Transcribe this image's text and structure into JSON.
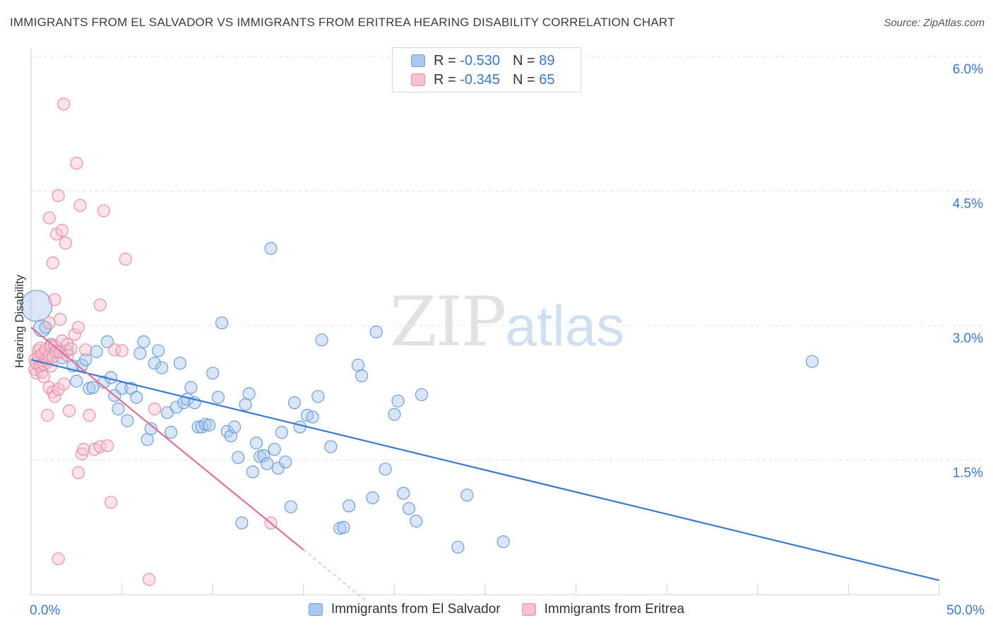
{
  "header": {
    "title": "IMMIGRANTS FROM EL SALVADOR VS IMMIGRANTS FROM ERITREA HEARING DISABILITY CORRELATION CHART",
    "source": "Source: ZipAtlas.com"
  },
  "watermark": {
    "zip": "ZIP",
    "atlas": "atlas"
  },
  "legend": {
    "r_label": "R =",
    "n_label": "N =",
    "rows": [
      {
        "r": "-0.530",
        "n": "89",
        "color": "#a8c8f0",
        "border": "#6f9fd8"
      },
      {
        "r": "-0.345",
        "n": "65",
        "color": "#f7c0d0",
        "border": "#e98fab"
      }
    ]
  },
  "chart_data": {
    "type": "scatter",
    "title": "IMMIGRANTS FROM EL SALVADOR VS IMMIGRANTS FROM ERITREA HEARING DISABILITY CORRELATION CHART",
    "xlabel": "",
    "ylabel": "Hearing Disability",
    "xlim": [
      0,
      50
    ],
    "ylim": [
      0,
      6.0
    ],
    "x_tick_labels": [
      "0.0%",
      "50.0%"
    ],
    "y_ticks": [
      1.5,
      3.0,
      4.5,
      6.0
    ],
    "y_tick_labels": [
      "1.5%",
      "3.0%",
      "4.5%",
      "6.0%"
    ],
    "grid": true,
    "series": [
      {
        "name": "Immigrants from El Salvador",
        "color": "#a8c8f0",
        "stroke": "#6f9fd8",
        "trend_color": "#3b78d0",
        "trend": {
          "x0": 0.0,
          "y0": 2.62,
          "x1": 50.0,
          "y1": 0.16
        },
        "points": [
          [
            0.3,
            3.22
          ],
          [
            0.6,
            2.97
          ],
          [
            0.8,
            2.98
          ],
          [
            1.1,
            2.79
          ],
          [
            1.3,
            2.71
          ],
          [
            1.5,
            2.73
          ],
          [
            1.7,
            2.64
          ],
          [
            2.0,
            2.72
          ],
          [
            2.3,
            2.55
          ],
          [
            2.5,
            2.38
          ],
          [
            2.8,
            2.56
          ],
          [
            3.0,
            2.62
          ],
          [
            3.2,
            2.3
          ],
          [
            3.4,
            2.31
          ],
          [
            3.6,
            2.71
          ],
          [
            4.0,
            2.37
          ],
          [
            4.2,
            2.82
          ],
          [
            4.4,
            2.42
          ],
          [
            4.6,
            2.22
          ],
          [
            4.8,
            2.07
          ],
          [
            5.0,
            2.3
          ],
          [
            5.3,
            1.94
          ],
          [
            5.5,
            2.3
          ],
          [
            5.8,
            2.2
          ],
          [
            6.0,
            2.69
          ],
          [
            6.2,
            2.82
          ],
          [
            6.4,
            1.73
          ],
          [
            6.6,
            1.85
          ],
          [
            6.8,
            2.58
          ],
          [
            7.0,
            2.72
          ],
          [
            7.2,
            2.53
          ],
          [
            7.5,
            2.03
          ],
          [
            7.7,
            1.81
          ],
          [
            8.0,
            2.09
          ],
          [
            8.2,
            2.58
          ],
          [
            8.4,
            2.14
          ],
          [
            8.6,
            2.18
          ],
          [
            8.8,
            2.31
          ],
          [
            9.0,
            2.14
          ],
          [
            9.2,
            1.87
          ],
          [
            9.4,
            1.87
          ],
          [
            9.6,
            1.9
          ],
          [
            9.8,
            1.89
          ],
          [
            10.0,
            2.47
          ],
          [
            10.3,
            2.2
          ],
          [
            10.5,
            3.03
          ],
          [
            10.8,
            1.82
          ],
          [
            11.0,
            1.77
          ],
          [
            11.2,
            1.87
          ],
          [
            11.4,
            1.53
          ],
          [
            11.6,
            0.8
          ],
          [
            11.8,
            2.12
          ],
          [
            12.0,
            2.24
          ],
          [
            12.2,
            1.37
          ],
          [
            12.4,
            1.69
          ],
          [
            12.6,
            1.54
          ],
          [
            12.8,
            1.55
          ],
          [
            13.0,
            1.46
          ],
          [
            13.2,
            3.86
          ],
          [
            13.4,
            1.62
          ],
          [
            13.6,
            1.41
          ],
          [
            13.8,
            1.81
          ],
          [
            14.0,
            1.48
          ],
          [
            14.3,
            0.98
          ],
          [
            14.5,
            2.14
          ],
          [
            14.8,
            1.87
          ],
          [
            15.2,
            2.0
          ],
          [
            15.5,
            1.98
          ],
          [
            15.8,
            2.21
          ],
          [
            16.0,
            2.84
          ],
          [
            16.5,
            1.65
          ],
          [
            17.0,
            0.74
          ],
          [
            17.2,
            0.75
          ],
          [
            17.5,
            0.99
          ],
          [
            18.0,
            2.56
          ],
          [
            18.2,
            2.44
          ],
          [
            18.8,
            1.08
          ],
          [
            19.0,
            2.93
          ],
          [
            19.5,
            1.4
          ],
          [
            20.0,
            2.01
          ],
          [
            20.2,
            2.16
          ],
          [
            20.5,
            1.13
          ],
          [
            20.8,
            0.96
          ],
          [
            21.2,
            0.82
          ],
          [
            21.5,
            2.23
          ],
          [
            23.5,
            0.53
          ],
          [
            24.0,
            1.11
          ],
          [
            26.0,
            0.59
          ],
          [
            43.0,
            2.6
          ]
        ]
      },
      {
        "name": "Immigrants from Eritrea",
        "color": "#f7c0d0",
        "stroke": "#e98fab",
        "trend_color": "#e06f96",
        "trend": {
          "x0": 0.0,
          "y0": 2.98,
          "x1": 15.0,
          "y1": 0.5
        },
        "trend_dash": {
          "x0": 15.0,
          "y0": 0.5,
          "x1": 18.5,
          "y1": -0.08
        },
        "points": [
          [
            0.2,
            2.62
          ],
          [
            0.2,
            2.51
          ],
          [
            0.3,
            2.47
          ],
          [
            0.3,
            2.58
          ],
          [
            0.4,
            2.72
          ],
          [
            0.4,
            2.65
          ],
          [
            0.5,
            2.55
          ],
          [
            0.5,
            2.75
          ],
          [
            0.6,
            2.48
          ],
          [
            0.6,
            2.68
          ],
          [
            0.7,
            2.57
          ],
          [
            0.7,
            2.43
          ],
          [
            0.8,
            2.62
          ],
          [
            0.8,
            2.73
          ],
          [
            0.9,
            2.0
          ],
          [
            0.9,
            2.59
          ],
          [
            1.0,
            2.31
          ],
          [
            1.0,
            2.66
          ],
          [
            1.0,
            3.03
          ],
          [
            1.0,
            4.2
          ],
          [
            1.1,
            2.77
          ],
          [
            1.1,
            2.55
          ],
          [
            1.2,
            3.7
          ],
          [
            1.2,
            2.26
          ],
          [
            1.2,
            2.65
          ],
          [
            1.3,
            2.78
          ],
          [
            1.3,
            2.21
          ],
          [
            1.3,
            3.29
          ],
          [
            1.4,
            4.02
          ],
          [
            1.4,
            2.71
          ],
          [
            1.5,
            4.45
          ],
          [
            1.5,
            0.4
          ],
          [
            1.5,
            2.29
          ],
          [
            1.6,
            3.07
          ],
          [
            1.6,
            2.7
          ],
          [
            1.7,
            2.83
          ],
          [
            1.7,
            4.06
          ],
          [
            1.8,
            5.47
          ],
          [
            1.8,
            2.35
          ],
          [
            1.9,
            3.92
          ],
          [
            2.0,
            2.67
          ],
          [
            2.0,
            2.79
          ],
          [
            2.1,
            2.05
          ],
          [
            2.2,
            2.74
          ],
          [
            2.4,
            2.9
          ],
          [
            2.5,
            4.81
          ],
          [
            2.6,
            2.98
          ],
          [
            2.6,
            1.36
          ],
          [
            2.7,
            4.34
          ],
          [
            2.8,
            1.57
          ],
          [
            2.9,
            1.62
          ],
          [
            3.0,
            2.73
          ],
          [
            3.2,
            2.0
          ],
          [
            3.5,
            1.62
          ],
          [
            3.8,
            3.23
          ],
          [
            3.8,
            1.65
          ],
          [
            4.0,
            4.28
          ],
          [
            4.2,
            1.66
          ],
          [
            4.4,
            1.03
          ],
          [
            4.6,
            2.73
          ],
          [
            5.0,
            2.72
          ],
          [
            5.2,
            3.74
          ],
          [
            6.5,
            0.17
          ],
          [
            6.8,
            2.07
          ],
          [
            13.2,
            0.8
          ]
        ]
      }
    ]
  }
}
